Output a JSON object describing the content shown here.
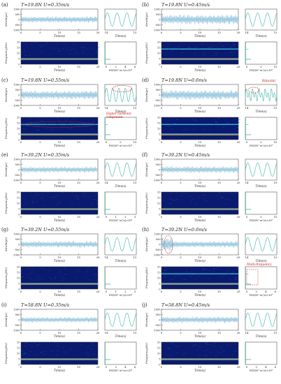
{
  "figure": {
    "accent_colors": {
      "signal": "#9cc9e0",
      "spectrogram_bg": "#0a1a6e",
      "line": "#33b3a6",
      "annotation": "#d42020"
    }
  },
  "chart_data": [
    {
      "id": "a",
      "type": "line",
      "panel_label": "(a)",
      "title": "T=19.8N U=0.35m/s",
      "ylabel": "Strain(με)",
      "xlabel": "Time(s)",
      "xlim": [
        0,
        20
      ],
      "ylim": [
        -1000,
        1000
      ],
      "x_ticks": [
        "0",
        "5",
        "10",
        "15",
        "20"
      ],
      "y_ticks": [
        "1000",
        "500",
        "0",
        "-500",
        "-1000"
      ],
      "zoom": {
        "xlabel": "Time(s)",
        "x_ticks": [
          "14",
          "15"
        ]
      },
      "spectrum": {
        "ylabel": "Frequency(Hz)",
        "psd_xlabel": "PSD(N²·m²/s)×10⁸",
        "psd_x_ticks": [
          "0",
          "2",
          "4",
          "6"
        ],
        "y_ticks": [
          "0",
          "5",
          "10",
          "15",
          "20"
        ]
      }
    },
    {
      "id": "b",
      "type": "line",
      "panel_label": "(b)",
      "title": "T=19.8N U=0.45m/s",
      "ylabel": "Strain(με)",
      "xlabel": "Time(s)",
      "xlim": [
        0,
        20
      ],
      "ylim": [
        -1000,
        1000
      ],
      "x_ticks": [
        "0",
        "5",
        "10",
        "15",
        "20"
      ],
      "y_ticks": [
        "1000",
        "500",
        "0",
        "-500",
        "-1000"
      ],
      "zoom": {
        "xlabel": "Time(s)",
        "x_ticks": [
          "14",
          "15"
        ]
      },
      "spectrum": {
        "ylabel": "Frequency(Hz)",
        "psd_xlabel": "PSD(N²·m²/s)×10⁸",
        "psd_x_ticks": [
          "0",
          "5",
          "10"
        ],
        "y_ticks": [
          "0",
          "5",
          "10",
          "15",
          "20"
        ]
      }
    },
    {
      "id": "c",
      "type": "line",
      "panel_label": "(c)",
      "title": "T=19.8N U=0.55m/s",
      "ylabel": "Strain(με)",
      "xlabel": "Time(s)",
      "xlim": [
        0,
        20
      ],
      "ylim": [
        -1000,
        1000
      ],
      "x_ticks": [
        "0",
        "5",
        "10",
        "15",
        "20"
      ],
      "y_ticks": [
        "1000",
        "500",
        "0",
        "-500",
        "-1000"
      ],
      "zoom": {
        "xlabel": "Time(s)",
        "x_ticks": [
          "14",
          "15"
        ]
      },
      "spectrum": {
        "ylabel": "Frequency(Hz)",
        "psd_xlabel": "PSD(N²·m²/s)×10⁸",
        "psd_x_ticks": [
          "0",
          "5",
          "10"
        ],
        "y_ticks": [
          "0",
          "5",
          "10",
          "15",
          "20"
        ]
      },
      "annotation": "Higher harmonic component"
    },
    {
      "id": "d",
      "type": "line",
      "panel_label": "(d)",
      "title": "T=19.8N U=0.6m/s",
      "ylabel": "Strain(με)",
      "xlabel": "Time(s)",
      "xlim": [
        0,
        20
      ],
      "ylim": [
        -1000,
        1000
      ],
      "x_ticks": [
        "0",
        "5",
        "10",
        "15",
        "20"
      ],
      "y_ticks": [
        "1000",
        "500",
        "0",
        "-500",
        "-1000"
      ],
      "zoom": {
        "xlabel": "Time(s)",
        "x_ticks": [
          "14",
          "15"
        ]
      },
      "spectrum": {
        "ylabel": "Frequency(Hz)",
        "psd_xlabel": "PSD(N²·m²/s)×10⁸",
        "psd_x_ticks": [
          "0",
          "5",
          "10"
        ],
        "y_ticks": [
          "0",
          "5",
          "10",
          "15",
          "20"
        ]
      },
      "annotation": "Bimodal"
    },
    {
      "id": "e",
      "type": "line",
      "panel_label": "(e)",
      "title": "T=39.2N U=0.35m/s",
      "ylabel": "Strain(με)",
      "xlabel": "Time(s)",
      "xlim": [
        0,
        20
      ],
      "ylim": [
        -1000,
        1000
      ],
      "x_ticks": [
        "0",
        "5",
        "10",
        "15",
        "20"
      ],
      "y_ticks": [
        "1000",
        "500",
        "0",
        "-500",
        "-1000"
      ],
      "zoom": {
        "xlabel": "Time(s)",
        "x_ticks": [
          "14",
          "15"
        ]
      },
      "spectrum": {
        "ylabel": "Frequency(Hz)",
        "psd_xlabel": "PSD(N²·m²/s)×10⁸",
        "psd_x_ticks": [
          "0",
          "1",
          "2",
          "3"
        ],
        "y_ticks": [
          "0",
          "5",
          "10",
          "15",
          "20"
        ]
      }
    },
    {
      "id": "f",
      "type": "line",
      "panel_label": "(f)",
      "title": "T=39.2N U=0.45m/s",
      "ylabel": "Strain(με)",
      "xlabel": "Time(s)",
      "xlim": [
        0,
        20
      ],
      "ylim": [
        -1000,
        1000
      ],
      "x_ticks": [
        "0",
        "5",
        "10",
        "15",
        "20"
      ],
      "y_ticks": [
        "1000",
        "500",
        "0",
        "-500",
        "-1000"
      ],
      "zoom": {
        "xlabel": "Time(s)",
        "x_ticks": [
          "14",
          "15"
        ]
      },
      "spectrum": {
        "ylabel": "Frequency(Hz)",
        "psd_xlabel": "PSD(N²·m²/s)×10⁸",
        "psd_x_ticks": [
          "0",
          "5",
          "10"
        ],
        "y_ticks": [
          "0",
          "5",
          "10",
          "15",
          "20"
        ]
      }
    },
    {
      "id": "g",
      "type": "line",
      "panel_label": "(g)",
      "title": "T=39.2N U=0.55m/s",
      "ylabel": "Strain(με)",
      "xlabel": "Time(s)",
      "xlim": [
        0,
        20
      ],
      "ylim": [
        -1000,
        1000
      ],
      "x_ticks": [
        "0",
        "5",
        "10",
        "15",
        "20"
      ],
      "y_ticks": [
        "1000",
        "500",
        "0",
        "-500",
        "-1000"
      ],
      "zoom": {
        "xlabel": "Time(s)",
        "x_ticks": [
          "14",
          "15"
        ]
      },
      "spectrum": {
        "ylabel": "Frequency(Hz)",
        "psd_xlabel": "PSD(N²·m²/s)×10⁸",
        "psd_x_ticks": [
          "0",
          "1",
          "2",
          "3"
        ],
        "y_ticks": [
          "0",
          "5",
          "10",
          "15",
          "20"
        ]
      }
    },
    {
      "id": "h",
      "type": "line",
      "panel_label": "(h)",
      "title": "T=39.2N U=0.6m/s",
      "ylabel": "Strain(με)",
      "xlabel": "Time(s)",
      "xlim": [
        0,
        20
      ],
      "ylim": [
        -1000,
        1000
      ],
      "x_ticks": [
        "0",
        "5",
        "10",
        "15",
        "20"
      ],
      "y_ticks": [
        "1000",
        "500",
        "0",
        "-500",
        "-1000"
      ],
      "zoom": {
        "xlabel": "Time(s)",
        "x_ticks": [
          "14",
          "15"
        ]
      },
      "spectrum": {
        "ylabel": "Frequency(Hz)",
        "psd_xlabel": "PSD(N²·m²/s)×10⁸",
        "psd_x_ticks": [
          "0",
          "2",
          "4",
          "6"
        ],
        "y_ticks": [
          "0",
          "5",
          "10",
          "15",
          "20"
        ]
      },
      "annotation": "Multi-frequency"
    },
    {
      "id": "i",
      "type": "line",
      "panel_label": "(i)",
      "title": "T=58.8N U=0.35m/s",
      "ylabel": "Strain(με)",
      "xlabel": "Time(s)",
      "xlim": [
        0,
        20
      ],
      "ylim": [
        -1000,
        1000
      ],
      "x_ticks": [
        "0",
        "5",
        "10",
        "15",
        "20"
      ],
      "y_ticks": [
        "1000",
        "500",
        "0",
        "-500",
        "-1000"
      ],
      "zoom": {
        "xlabel": "Time(s)",
        "x_ticks": [
          "14",
          "15"
        ]
      },
      "spectrum": {
        "ylabel": "Frequency(Hz)",
        "psd_xlabel": "PSD(N²·m²/s)×10⁸",
        "psd_x_ticks": [
          "0",
          "2",
          "4",
          "6"
        ],
        "y_ticks": [
          "0",
          "5",
          "10",
          "15",
          "20"
        ]
      }
    },
    {
      "id": "j",
      "type": "line",
      "panel_label": "(j)",
      "title": "T=58.8N U=0.45m/s",
      "ylabel": "Strain(με)",
      "xlabel": "Time(s)",
      "xlim": [
        0,
        20
      ],
      "ylim": [
        -1000,
        1000
      ],
      "x_ticks": [
        "0",
        "5",
        "10",
        "15",
        "20"
      ],
      "y_ticks": [
        "1000",
        "500",
        "0",
        "-500",
        "-1000"
      ],
      "zoom": {
        "xlabel": "Time(s)",
        "x_ticks": [
          "14",
          "15"
        ]
      },
      "spectrum": {
        "ylabel": "Frequency(Hz)",
        "psd_xlabel": "PSD(N²·m²/s)×10⁸",
        "psd_x_ticks": [
          "0",
          "2",
          "4",
          "6"
        ],
        "y_ticks": [
          "0",
          "5",
          "10",
          "15",
          "20"
        ]
      }
    }
  ]
}
